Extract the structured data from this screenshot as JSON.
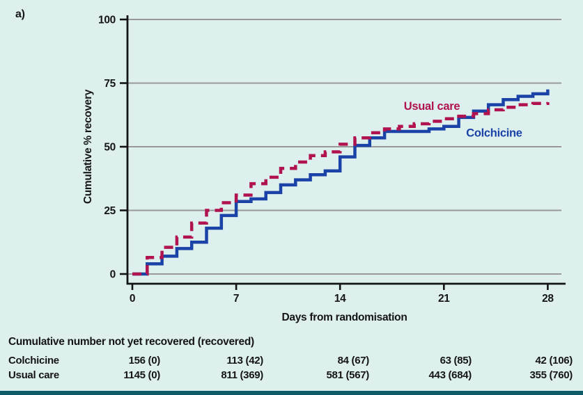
{
  "panel_label": "a)",
  "colors": {
    "background": "#ddf0ee",
    "axis": "#141414",
    "grid": "#989898",
    "colchicine": "#1a42a7",
    "usual_care": "#b0134f",
    "text": "#151515",
    "bottom_bar": "#0d5b66"
  },
  "chart_data": {
    "type": "line",
    "subtype": "kaplan-meier-step",
    "title": "",
    "xlabel": "Days from randomisation",
    "ylabel": "Cumulative % recovery",
    "xlim": [
      0,
      28
    ],
    "ylim": [
      0,
      100
    ],
    "x_ticks": [
      0,
      7,
      14,
      21,
      28
    ],
    "y_ticks": [
      0,
      25,
      50,
      75,
      100
    ],
    "grid": "horizontal",
    "legend_position": "inline-labels",
    "series": [
      {
        "name": "Colchicine",
        "color_key": "colchicine",
        "style": "solid",
        "points": [
          [
            0,
            0
          ],
          [
            1,
            4
          ],
          [
            2,
            7
          ],
          [
            3,
            10
          ],
          [
            4,
            12.5
          ],
          [
            5,
            18
          ],
          [
            6,
            23
          ],
          [
            7,
            28.5
          ],
          [
            8,
            29.5
          ],
          [
            9,
            32
          ],
          [
            10,
            35
          ],
          [
            11,
            37
          ],
          [
            12,
            39
          ],
          [
            13,
            40.5
          ],
          [
            14,
            46
          ],
          [
            15,
            50.5
          ],
          [
            16,
            53.5
          ],
          [
            17,
            56
          ],
          [
            20,
            57
          ],
          [
            21,
            58
          ],
          [
            22,
            61.5
          ],
          [
            23,
            64
          ],
          [
            24,
            66.5
          ],
          [
            25,
            68.5
          ],
          [
            26,
            69.8
          ],
          [
            27,
            70.8
          ],
          [
            28,
            72.5
          ]
        ]
      },
      {
        "name": "Usual care",
        "color_key": "usual_care",
        "style": "dashed",
        "points": [
          [
            0,
            0
          ],
          [
            1,
            6.5
          ],
          [
            2,
            10.5
          ],
          [
            3,
            14.5
          ],
          [
            4,
            20
          ],
          [
            5,
            25
          ],
          [
            6,
            28
          ],
          [
            7,
            31
          ],
          [
            8,
            35.5
          ],
          [
            9,
            38
          ],
          [
            10,
            41.5
          ],
          [
            11,
            44
          ],
          [
            12,
            46.5
          ],
          [
            13,
            48
          ],
          [
            14,
            51
          ],
          [
            15,
            53.5
          ],
          [
            16,
            55.5
          ],
          [
            17,
            57
          ],
          [
            18,
            58
          ],
          [
            19,
            59
          ],
          [
            20,
            60
          ],
          [
            21,
            61
          ],
          [
            22,
            62
          ],
          [
            23,
            63
          ],
          [
            24,
            64.5
          ],
          [
            25,
            65.5
          ],
          [
            26,
            66.5
          ],
          [
            27,
            67
          ],
          [
            28,
            67.5
          ]
        ]
      }
    ],
    "inline_labels": [
      {
        "text": "Usual care",
        "x_day": 18.3,
        "y_pct": 64.5,
        "color_key": "usual_care"
      },
      {
        "text": "Colchicine",
        "x_day": 22.5,
        "y_pct": 54.0,
        "color_key": "colchicine"
      }
    ]
  },
  "risk_table": {
    "title": "Cumulative number not yet recovered (recovered)",
    "rows": [
      {
        "label": "Colchicine",
        "values": [
          "156 (0)",
          "113 (42)",
          "84 (67)",
          "63 (85)",
          "42 (106)"
        ]
      },
      {
        "label": "Usual care",
        "values": [
          "1145 (0)",
          "811 (369)",
          "581 (567)",
          "443 (684)",
          "355 (760)"
        ]
      }
    ]
  }
}
